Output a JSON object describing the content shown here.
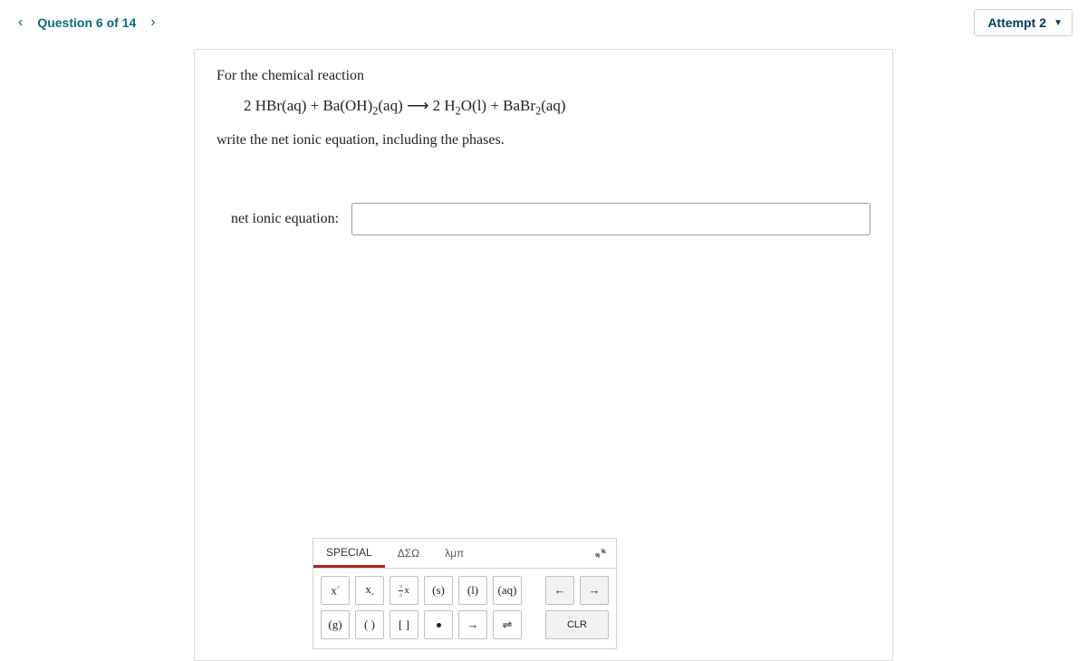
{
  "header": {
    "question_indicator": "Question 6 of 14",
    "attempt_label": "Attempt 2"
  },
  "question": {
    "intro": "For the chemical reaction",
    "reaction_html": "2 HBr(aq) + Ba(OH)<span class='sub'>2</span>(aq)  ⟶  2 H<span class='sub'>2</span>O(l) + BaBr<span class='sub'>2</span>(aq)",
    "instruction": "write the net ionic equation, including the phases.",
    "input_label": "net ionic equation:",
    "input_value": ""
  },
  "toolbar": {
    "tabs": {
      "special": "SPECIAL",
      "greek_upper": "ΔΣΩ",
      "greek_lower": "λμπ"
    },
    "row1": {
      "sup": "x",
      "sub": "x",
      "frac_top": "▫",
      "frac_bot": "▫",
      "s": "(s)",
      "l": "(l)",
      "aq": "(aq)",
      "undo": "←",
      "redo": "→"
    },
    "row2": {
      "g": "(g)",
      "paren": "( )",
      "bracket": "[ ]",
      "arrow": "→",
      "equil": "⇌",
      "clr": "CLR"
    },
    "collapse": "⤡"
  },
  "colors": {
    "teal": "#00707a",
    "navy": "#003a5d",
    "active_tab": "#b02222",
    "border": "#d0d0d0",
    "btn_border": "#bfbfbf",
    "tool_bg": "#f2f2f2"
  }
}
